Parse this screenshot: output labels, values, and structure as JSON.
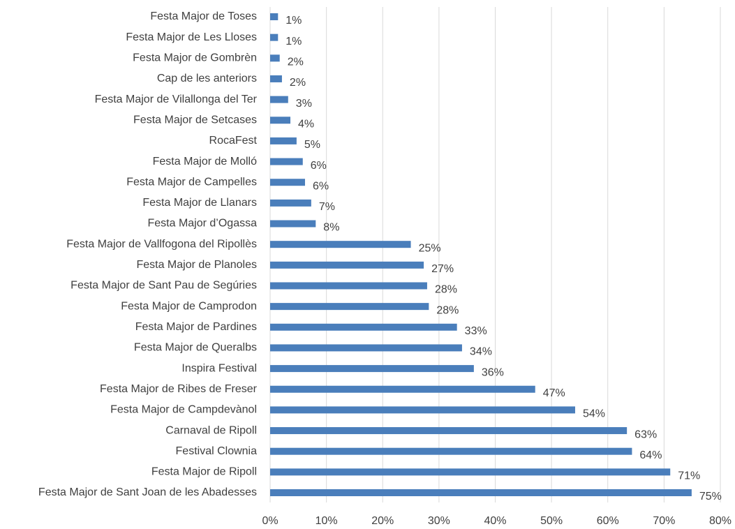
{
  "chart_data": {
    "type": "barh",
    "categories": [
      "Festa Major de Toses",
      "Festa Major de Les Lloses",
      "Festa Major de Gombrèn",
      "Cap de les anteriors",
      "Festa Major de Vilallonga del Ter",
      "Festa Major de Setcases",
      "RocaFest",
      "Festa Major de Molló",
      "Festa Major de Campelles",
      "Festa Major de Llanars",
      "Festa Major d’Ogassa",
      "Festa Major de Vallfogona del Ripollès",
      "Festa Major de Planoles",
      "Festa Major de Sant Pau de Segúries",
      "Festa Major de Camprodon",
      "Festa Major de Pardines",
      "Festa Major de Queralbs",
      "Inspira Festival",
      "Festa Major de Ribes de Freser",
      "Festa Major de Campdevànol",
      "Carnaval de Ripoll",
      "Festival Clownia",
      "Festa Major de Ripoll",
      "Festa Major de Sant Joan de les Abadesses"
    ],
    "values": [
      1.4,
      1.4,
      1.7,
      2.1,
      3.2,
      3.6,
      4.7,
      5.8,
      6.2,
      7.3,
      8.1,
      25,
      27.3,
      27.9,
      28.2,
      33.2,
      34.1,
      36.2,
      47.1,
      54.2,
      63.4,
      64.3,
      71.1,
      74.9
    ],
    "value_labels": [
      "1%",
      "1%",
      "2%",
      "2%",
      "3%",
      "4%",
      "5%",
      "6%",
      "6%",
      "7%",
      "8%",
      "25%",
      "27%",
      "28%",
      "28%",
      "33%",
      "34%",
      "36%",
      "47%",
      "54%",
      "63%",
      "64%",
      "71%",
      "75%"
    ],
    "color": "#4a7ebb",
    "xlim": [
      0,
      80
    ],
    "xticks": [
      {
        "value": 0,
        "label": "0%"
      },
      {
        "value": 10,
        "label": "10%"
      },
      {
        "value": 20,
        "label": "20%"
      },
      {
        "value": 30,
        "label": "30%"
      },
      {
        "value": 40,
        "label": "40%"
      },
      {
        "value": 50,
        "label": "50%"
      },
      {
        "value": 60,
        "label": "60%"
      },
      {
        "value": 70,
        "label": "70%"
      },
      {
        "value": 80,
        "label": "80%"
      }
    ],
    "grid": true
  }
}
